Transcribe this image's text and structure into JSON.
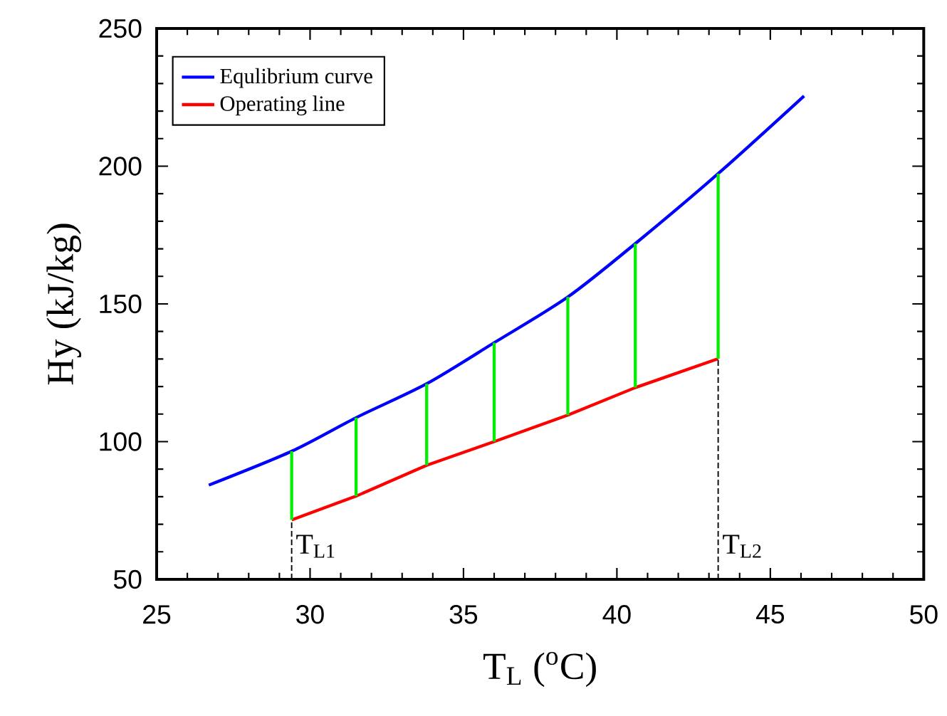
{
  "chart_data": {
    "type": "line",
    "xlabel": "T$_{L}$ ($^{o}$C)",
    "ylabel": "Hy (kJ/kg)",
    "xlim": [
      25,
      50
    ],
    "ylim": [
      50,
      250
    ],
    "xticks": [
      25,
      30,
      35,
      40,
      45,
      50
    ],
    "yticks": [
      50,
      100,
      150,
      200,
      250
    ],
    "legend": "top left",
    "grid": false,
    "series": [
      {
        "name": "Equlibrium curve",
        "color": "#0000ff",
        "x": [
          26.7,
          29.4,
          31.5,
          33.8,
          36.0,
          38.4,
          40.6,
          43.3,
          46.1
        ],
        "values": [
          84.2,
          96.5,
          108.7,
          121.0,
          135.9,
          152.5,
          171.9,
          197.3,
          225.5
        ]
      },
      {
        "name": "Operating line",
        "color": "#ff0000",
        "x": [
          29.4,
          31.5,
          33.8,
          36.0,
          38.4,
          40.6,
          43.3
        ],
        "values": [
          71.6,
          80.2,
          91.4,
          100.0,
          109.6,
          119.6,
          130.1
        ]
      },
      {
        "color": "#00ee00",
        "x": [
          29.4,
          29.4
        ],
        "values": [
          71.6,
          96.5
        ]
      },
      {
        "color": "#00ee00",
        "x": [
          31.5,
          31.5
        ],
        "values": [
          80.2,
          108.7
        ]
      },
      {
        "color": "#00ee00",
        "x": [
          33.8,
          33.8
        ],
        "values": [
          91.4,
          121.0
        ]
      },
      {
        "color": "#00ee00",
        "x": [
          36.0,
          36.0
        ],
        "values": [
          100.0,
          135.9
        ]
      },
      {
        "color": "#00ee00",
        "x": [
          38.4,
          38.4
        ],
        "values": [
          109.6,
          152.5
        ]
      },
      {
        "color": "#00ee00",
        "x": [
          40.6,
          40.6
        ],
        "values": [
          119.6,
          171.9
        ]
      },
      {
        "color": "#00ee00",
        "x": [
          43.3,
          43.3
        ],
        "values": [
          130.1,
          197.3
        ]
      },
      {
        "color": "#000000",
        "line_style": "dashed",
        "x": [
          29.4,
          29.4
        ],
        "values": [
          50,
          71.6
        ]
      },
      {
        "color": "#000000",
        "line_style": "dashed",
        "x": [
          43.3,
          43.3
        ],
        "values": [
          50,
          130.1
        ]
      }
    ],
    "annotations": [
      {
        "text": "T$_{L1}$",
        "x": 29.4,
        "y": 62
      },
      {
        "text": "T$_{L2}$",
        "x": 43.3,
        "y": 62
      }
    ]
  }
}
